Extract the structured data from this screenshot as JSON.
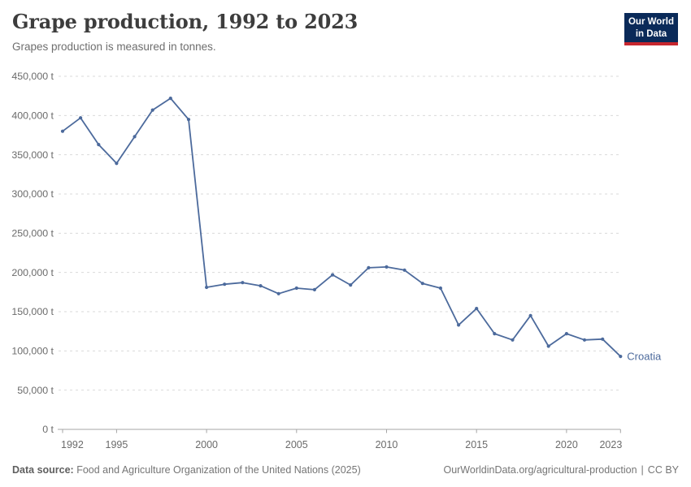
{
  "header": {
    "title": "Grape production, 1992 to 2023",
    "subtitle": "Grapes production is measured in tonnes.",
    "logo": {
      "line1": "Our World",
      "line2": "in Data",
      "bg_color": "#0a2a59",
      "accent_color": "#c6262e"
    }
  },
  "chart_data": {
    "type": "line",
    "title": "Grape production, 1992 to 2023",
    "subtitle": "Grapes production is measured in tonnes.",
    "unit": "t",
    "grid": true,
    "ylim": [
      0,
      450000
    ],
    "ytick_step": 50000,
    "xticks": [
      1992,
      1995,
      2000,
      2005,
      2010,
      2015,
      2020,
      2023
    ],
    "x": [
      1992,
      1993,
      1994,
      1995,
      1996,
      1997,
      1998,
      1999,
      2000,
      2001,
      2002,
      2003,
      2004,
      2005,
      2006,
      2007,
      2008,
      2009,
      2010,
      2011,
      2012,
      2013,
      2014,
      2015,
      2016,
      2017,
      2018,
      2019,
      2020,
      2021,
      2022,
      2023
    ],
    "series": [
      {
        "name": "Croatia",
        "color": "#4C6A9C",
        "values": [
          380000,
          397000,
          363000,
          339000,
          373000,
          407000,
          422000,
          395000,
          181000,
          185000,
          187000,
          183000,
          173000,
          180000,
          178000,
          197000,
          184000,
          206000,
          207000,
          203000,
          186000,
          180000,
          133000,
          154000,
          122000,
          114000,
          145000,
          106000,
          122000,
          114000,
          115000,
          93000
        ]
      }
    ],
    "axis_colors": {
      "gridline": "#dadada",
      "axis_line": "#a5a5a5",
      "tick_label": "#6b6b6b"
    }
  },
  "footer": {
    "datasource_label": "Data source:",
    "datasource_text": "Food and Agriculture Organization of the United Nations (2025)",
    "url": "OurWorldinData.org/agricultural-production",
    "divider": "|",
    "license": "CC BY"
  }
}
